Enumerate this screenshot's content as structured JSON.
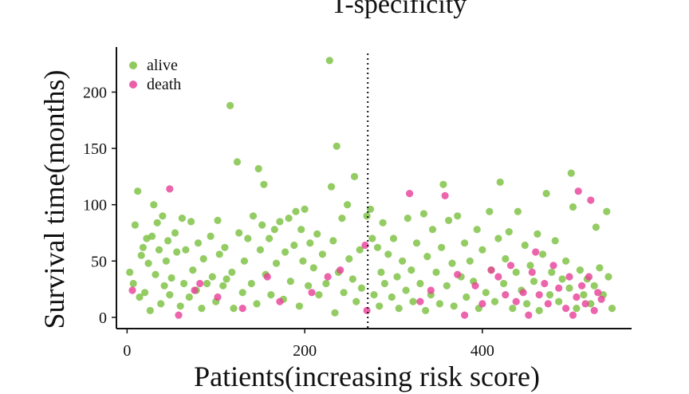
{
  "chart_data": {
    "type": "scatter",
    "title": "T-specificity",
    "xlabel": "Patients(increasing risk score)",
    "ylabel": "Survival time(months)",
    "xlim": [
      -12,
      568
    ],
    "ylim": [
      -10,
      240
    ],
    "xticks": [
      "0",
      "200",
      "400"
    ],
    "yticks": [
      "0",
      "50",
      "100",
      "150",
      "200"
    ],
    "cutoff_x": 271,
    "legend_position": "top-left",
    "grid": false,
    "series": [
      {
        "name": "alive",
        "color": "#7cc142",
        "points": [
          [
            3,
            40
          ],
          [
            7,
            30
          ],
          [
            9,
            82
          ],
          [
            12,
            112
          ],
          [
            14,
            18
          ],
          [
            16,
            55
          ],
          [
            18,
            62
          ],
          [
            20,
            22
          ],
          [
            22,
            70
          ],
          [
            24,
            48
          ],
          [
            26,
            6
          ],
          [
            28,
            72
          ],
          [
            30,
            100
          ],
          [
            32,
            38
          ],
          [
            34,
            84
          ],
          [
            36,
            60
          ],
          [
            38,
            12
          ],
          [
            40,
            90
          ],
          [
            42,
            28
          ],
          [
            44,
            50
          ],
          [
            46,
            68
          ],
          [
            48,
            20
          ],
          [
            50,
            35
          ],
          [
            54,
            75
          ],
          [
            56,
            58
          ],
          [
            60,
            10
          ],
          [
            62,
            88
          ],
          [
            64,
            30
          ],
          [
            66,
            60
          ],
          [
            70,
            18
          ],
          [
            72,
            85
          ],
          [
            74,
            42
          ],
          [
            78,
            24
          ],
          [
            80,
            66
          ],
          [
            84,
            8
          ],
          [
            86,
            52
          ],
          [
            90,
            30
          ],
          [
            94,
            72
          ],
          [
            96,
            36
          ],
          [
            100,
            14
          ],
          [
            102,
            86
          ],
          [
            104,
            56
          ],
          [
            108,
            28
          ],
          [
            110,
            62
          ],
          [
            112,
            34
          ],
          [
            116,
            188
          ],
          [
            118,
            40
          ],
          [
            120,
            8
          ],
          [
            124,
            138
          ],
          [
            126,
            75
          ],
          [
            130,
            22
          ],
          [
            132,
            50
          ],
          [
            136,
            70
          ],
          [
            140,
            30
          ],
          [
            142,
            90
          ],
          [
            146,
            12
          ],
          [
            148,
            132
          ],
          [
            150,
            60
          ],
          [
            152,
            82
          ],
          [
            154,
            118
          ],
          [
            156,
            38
          ],
          [
            160,
            70
          ],
          [
            162,
            20
          ],
          [
            166,
            78
          ],
          [
            168,
            48
          ],
          [
            172,
            85
          ],
          [
            176,
            16
          ],
          [
            178,
            58
          ],
          [
            182,
            88
          ],
          [
            184,
            32
          ],
          [
            188,
            64
          ],
          [
            190,
            94
          ],
          [
            194,
            10
          ],
          [
            196,
            78
          ],
          [
            198,
            50
          ],
          [
            200,
            96
          ],
          [
            204,
            28
          ],
          [
            206,
            66
          ],
          [
            210,
            44
          ],
          [
            214,
            74
          ],
          [
            216,
            20
          ],
          [
            220,
            56
          ],
          [
            224,
            30
          ],
          [
            228,
            228
          ],
          [
            230,
            116
          ],
          [
            232,
            68
          ],
          [
            234,
            4
          ],
          [
            236,
            152
          ],
          [
            238,
            40
          ],
          [
            242,
            88
          ],
          [
            244,
            22
          ],
          [
            248,
            100
          ],
          [
            250,
            52
          ],
          [
            254,
            34
          ],
          [
            256,
            125
          ],
          [
            258,
            14
          ],
          [
            262,
            60
          ],
          [
            264,
            26
          ],
          [
            270,
            90
          ],
          [
            274,
            96
          ],
          [
            276,
            70
          ],
          [
            278,
            20
          ],
          [
            282,
            62
          ],
          [
            284,
            10
          ],
          [
            286,
            40
          ],
          [
            288,
            84
          ],
          [
            290,
            30
          ],
          [
            294,
            56
          ],
          [
            298,
            18
          ],
          [
            300,
            70
          ],
          [
            304,
            36
          ],
          [
            306,
            8
          ],
          [
            310,
            50
          ],
          [
            314,
            24
          ],
          [
            316,
            88
          ],
          [
            320,
            42
          ],
          [
            322,
            14
          ],
          [
            326,
            66
          ],
          [
            330,
            30
          ],
          [
            334,
            92
          ],
          [
            336,
            6
          ],
          [
            338,
            54
          ],
          [
            342,
            20
          ],
          [
            344,
            78
          ],
          [
            348,
            40
          ],
          [
            352,
            12
          ],
          [
            354,
            62
          ],
          [
            356,
            118
          ],
          [
            360,
            28
          ],
          [
            362,
            86
          ],
          [
            366,
            48
          ],
          [
            368,
            10
          ],
          [
            372,
            90
          ],
          [
            376,
            36
          ],
          [
            380,
            66
          ],
          [
            382,
            18
          ],
          [
            386,
            50
          ],
          [
            390,
            32
          ],
          [
            394,
            78
          ],
          [
            396,
            8
          ],
          [
            400,
            60
          ],
          [
            404,
            22
          ],
          [
            408,
            94
          ],
          [
            410,
            42
          ],
          [
            414,
            14
          ],
          [
            418,
            70
          ],
          [
            420,
            120
          ],
          [
            424,
            30
          ],
          [
            426,
            52
          ],
          [
            430,
            76
          ],
          [
            434,
            8
          ],
          [
            438,
            40
          ],
          [
            440,
            94
          ],
          [
            444,
            24
          ],
          [
            448,
            64
          ],
          [
            450,
            12
          ],
          [
            454,
            46
          ],
          [
            458,
            32
          ],
          [
            462,
            74
          ],
          [
            464,
            6
          ],
          [
            468,
            56
          ],
          [
            472,
            110
          ],
          [
            476,
            20
          ],
          [
            478,
            40
          ],
          [
            482,
            68
          ],
          [
            486,
            14
          ],
          [
            490,
            34
          ],
          [
            494,
            50
          ],
          [
            498,
            26
          ],
          [
            500,
            128
          ],
          [
            502,
            98
          ],
          [
            506,
            8
          ],
          [
            510,
            42
          ],
          [
            514,
            20
          ],
          [
            518,
            34
          ],
          [
            522,
            12
          ],
          [
            526,
            28
          ],
          [
            528,
            80
          ],
          [
            532,
            44
          ],
          [
            536,
            20
          ],
          [
            540,
            94
          ],
          [
            542,
            36
          ],
          [
            546,
            8
          ]
        ]
      },
      {
        "name": "death",
        "color": "#e8439a",
        "points": [
          [
            6,
            24
          ],
          [
            48,
            114
          ],
          [
            58,
            2
          ],
          [
            76,
            24
          ],
          [
            82,
            30
          ],
          [
            102,
            18
          ],
          [
            130,
            8
          ],
          [
            158,
            36
          ],
          [
            172,
            14
          ],
          [
            208,
            22
          ],
          [
            226,
            36
          ],
          [
            240,
            42
          ],
          [
            268,
            64
          ],
          [
            270,
            6
          ],
          [
            318,
            110
          ],
          [
            330,
            14
          ],
          [
            342,
            24
          ],
          [
            358,
            108
          ],
          [
            372,
            38
          ],
          [
            380,
            2
          ],
          [
            392,
            28
          ],
          [
            400,
            12
          ],
          [
            410,
            42
          ],
          [
            418,
            36
          ],
          [
            426,
            20
          ],
          [
            432,
            46
          ],
          [
            438,
            14
          ],
          [
            446,
            22
          ],
          [
            452,
            2
          ],
          [
            456,
            40
          ],
          [
            460,
            58
          ],
          [
            464,
            20
          ],
          [
            470,
            30
          ],
          [
            474,
            12
          ],
          [
            480,
            46
          ],
          [
            486,
            26
          ],
          [
            494,
            8
          ],
          [
            498,
            36
          ],
          [
            502,
            2
          ],
          [
            506,
            18
          ],
          [
            508,
            112
          ],
          [
            512,
            28
          ],
          [
            516,
            12
          ],
          [
            520,
            36
          ],
          [
            522,
            104
          ],
          [
            526,
            6
          ],
          [
            530,
            22
          ],
          [
            534,
            16
          ]
        ]
      }
    ]
  }
}
